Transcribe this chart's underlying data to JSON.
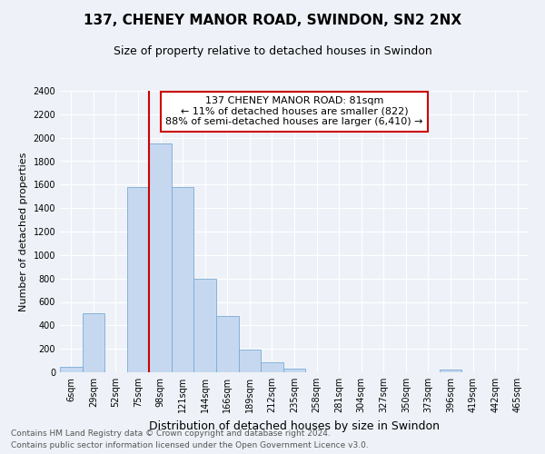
{
  "title1": "137, CHENEY MANOR ROAD, SWINDON, SN2 2NX",
  "title2": "Size of property relative to detached houses in Swindon",
  "xlabel": "Distribution of detached houses by size in Swindon",
  "ylabel": "Number of detached properties",
  "categories": [
    "6sqm",
    "29sqm",
    "52sqm",
    "75sqm",
    "98sqm",
    "121sqm",
    "144sqm",
    "166sqm",
    "189sqm",
    "212sqm",
    "235sqm",
    "258sqm",
    "281sqm",
    "304sqm",
    "327sqm",
    "350sqm",
    "373sqm",
    "396sqm",
    "419sqm",
    "442sqm",
    "465sqm"
  ],
  "values": [
    50,
    500,
    0,
    1580,
    1950,
    1580,
    800,
    480,
    190,
    85,
    30,
    0,
    0,
    0,
    0,
    0,
    0,
    20,
    0,
    0,
    0
  ],
  "bar_color": "#c5d8f0",
  "bar_edge_color": "#7baad4",
  "vline_color": "#cc0000",
  "vline_pos": 3.5,
  "annotation_text": "137 CHENEY MANOR ROAD: 81sqm\n← 11% of detached houses are smaller (822)\n88% of semi-detached houses are larger (6,410) →",
  "annotation_box_color": "#ffffff",
  "annotation_box_edge_color": "#cc0000",
  "ylim": [
    0,
    2400
  ],
  "yticks": [
    0,
    200,
    400,
    600,
    800,
    1000,
    1200,
    1400,
    1600,
    1800,
    2000,
    2200,
    2400
  ],
  "footer1": "Contains HM Land Registry data © Crown copyright and database right 2024.",
  "footer2": "Contains public sector information licensed under the Open Government Licence v3.0.",
  "bg_color": "#eef2f8",
  "plot_bg_color": "#eef2f8",
  "grid_color": "#ffffff",
  "title1_fontsize": 11,
  "title2_fontsize": 9,
  "ylabel_fontsize": 8,
  "xlabel_fontsize": 9,
  "tick_fontsize": 7,
  "footer_fontsize": 6.5
}
